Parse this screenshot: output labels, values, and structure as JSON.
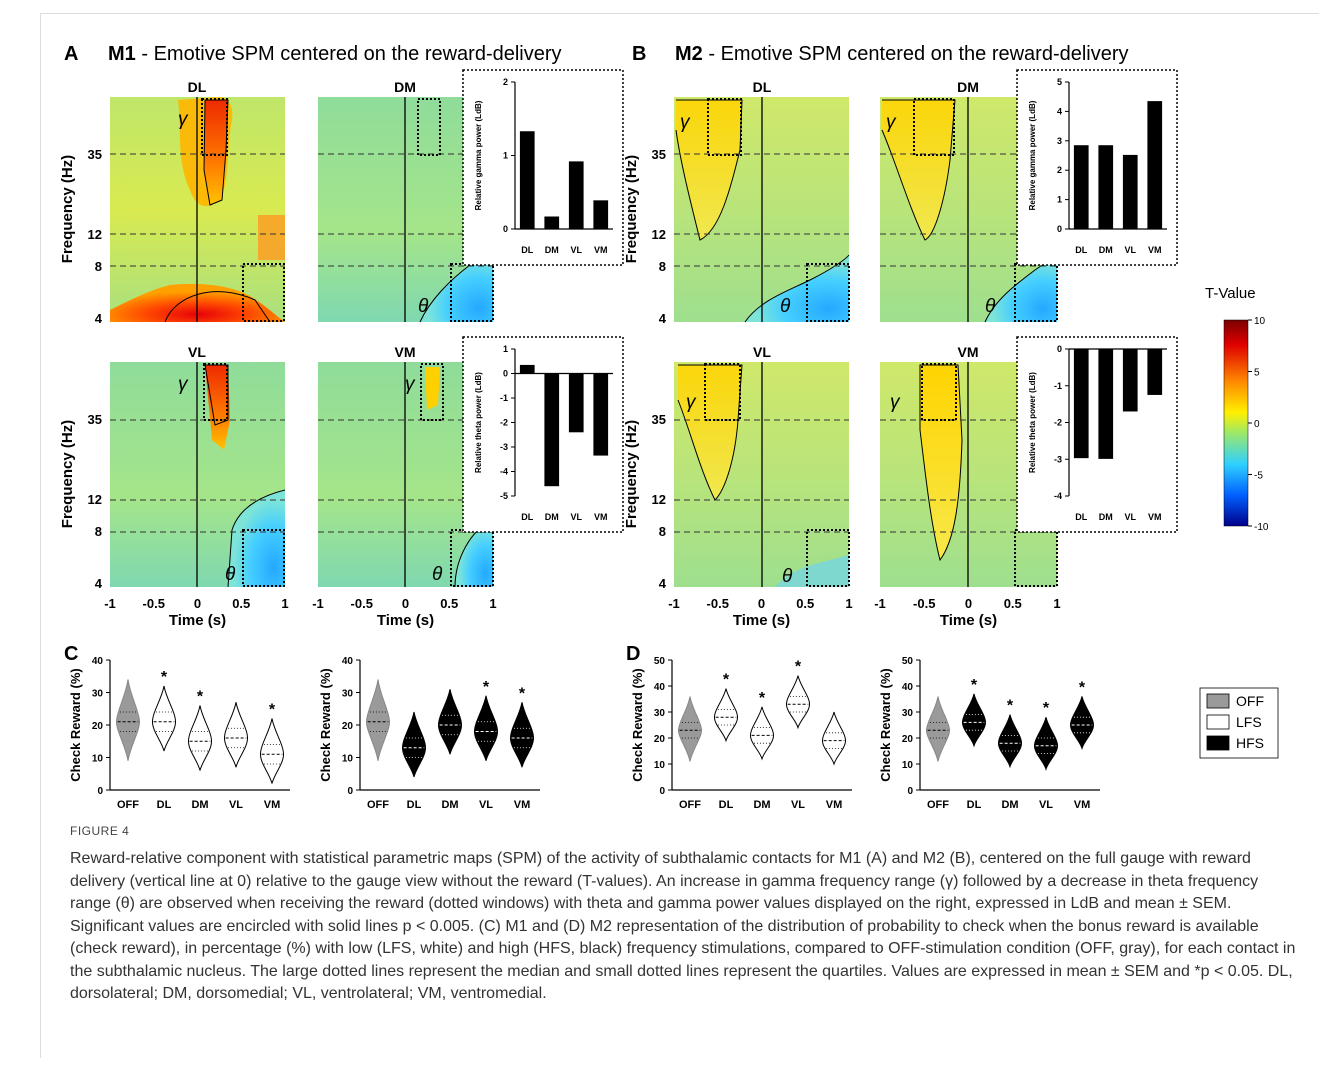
{
  "panels": {
    "A": {
      "letter": "A",
      "title_bold": "M1",
      "title_rest": " - Emotive SPM centered on the reward-delivery"
    },
    "B": {
      "letter": "B",
      "title_bold": "M2",
      "title_rest": " - Emotive SPM centered on the reward-delivery"
    },
    "C": {
      "letter": "C"
    },
    "D": {
      "letter": "D"
    }
  },
  "spm": {
    "contacts": [
      "DL",
      "DM",
      "VL",
      "VM"
    ],
    "freq_axis_label": "Frequency (Hz)",
    "freq_ticks": [
      "35",
      "12",
      "8",
      "4"
    ],
    "time_axis_label": "Time (s)",
    "time_ticks": [
      "-1",
      "-0.5",
      "0",
      "0.5",
      "1"
    ],
    "gamma_symbol": "γ",
    "theta_symbol": "θ"
  },
  "colorbar": {
    "title": "T-Value",
    "ticks": [
      "10",
      "5",
      "0",
      "-5",
      "-10"
    ],
    "colors": [
      "#7a0000",
      "#e00000",
      "#ff7a00",
      "#ffe600",
      "#9be86a",
      "#2fd0ff",
      "#0070ff",
      "#00008b"
    ]
  },
  "chart_data": [
    {
      "type": "bar",
      "panel": "A-gamma",
      "categories": [
        "DL",
        "DM",
        "VL",
        "VM"
      ],
      "values": [
        1.33,
        0.17,
        0.92,
        0.39
      ],
      "ylabel": "Relative gamma power (LdB)",
      "ylim": [
        0,
        2
      ],
      "yticks": [
        "2",
        "1",
        "0"
      ]
    },
    {
      "type": "bar",
      "panel": "A-theta",
      "categories": [
        "DL",
        "DM",
        "VL",
        "VM"
      ],
      "values": [
        0.35,
        -4.6,
        -2.4,
        -3.35
      ],
      "ylabel": "Relative theta power (LdB)",
      "ylim": [
        -5,
        1
      ],
      "yticks": [
        "1",
        "0",
        "-1",
        "-2",
        "-3",
        "-4",
        "-5"
      ]
    },
    {
      "type": "bar",
      "panel": "B-gamma",
      "categories": [
        "DL",
        "DM",
        "VL",
        "VM"
      ],
      "values": [
        2.85,
        2.85,
        2.52,
        4.35
      ],
      "ylabel": "Relative gamma power (LdB)",
      "ylim": [
        0,
        5
      ],
      "yticks": [
        "5",
        "4",
        "3",
        "2",
        "1",
        "0"
      ]
    },
    {
      "type": "bar",
      "panel": "B-theta",
      "categories": [
        "DL",
        "DM",
        "VL",
        "VM"
      ],
      "values": [
        -2.97,
        -2.99,
        -1.7,
        -1.25
      ],
      "ylabel": "Relative theta power (LdB)",
      "ylim": [
        -4,
        0
      ],
      "yticks": [
        "0",
        "-1",
        "-2",
        "-3",
        "-4"
      ]
    },
    {
      "type": "violin",
      "panel": "C-LFS",
      "categories": [
        "OFF",
        "DL",
        "DM",
        "VL",
        "VM"
      ],
      "medians": [
        21,
        21,
        15,
        16,
        11
      ],
      "ylabel": "Check Reward (%)",
      "ylim": [
        0,
        40
      ],
      "yticks": [
        "40",
        "30",
        "20",
        "10",
        "0"
      ],
      "significant": [
        "DL",
        "DM",
        "VM"
      ]
    },
    {
      "type": "violin",
      "panel": "C-HFS",
      "categories": [
        "OFF",
        "DL",
        "DM",
        "VL",
        "VM"
      ],
      "medians": [
        21,
        13,
        20,
        18,
        16
      ],
      "ylabel": "Check Reward (%)",
      "ylim": [
        0,
        40
      ],
      "yticks": [
        "40",
        "30",
        "20",
        "10",
        "0"
      ],
      "significant": [
        "VL",
        "VM"
      ]
    },
    {
      "type": "violin",
      "panel": "D-LFS",
      "categories": [
        "OFF",
        "DL",
        "DM",
        "VL",
        "VM"
      ],
      "medians": [
        23,
        28,
        21,
        33,
        19
      ],
      "ylabel": "Check Reward (%)",
      "ylim": [
        0,
        50
      ],
      "yticks": [
        "50",
        "40",
        "30",
        "20",
        "10",
        "0"
      ],
      "significant": [
        "DL",
        "DM",
        "VL"
      ]
    },
    {
      "type": "violin",
      "panel": "D-HFS",
      "categories": [
        "OFF",
        "DL",
        "DM",
        "VL",
        "VM"
      ],
      "medians": [
        23,
        26,
        18,
        17,
        25
      ],
      "ylabel": "Check Reward (%)",
      "ylim": [
        0,
        50
      ],
      "yticks": [
        "50",
        "40",
        "30",
        "20",
        "10",
        "0"
      ],
      "significant": [
        "DL",
        "DM",
        "VL",
        "VM"
      ]
    }
  ],
  "legend": {
    "items": [
      {
        "label": "OFF",
        "color": "#9a9a9a"
      },
      {
        "label": "LFS",
        "color": "#ffffff"
      },
      {
        "label": "HFS",
        "color": "#000000"
      }
    ]
  },
  "star": "*",
  "caption": {
    "label": "FIGURE 4",
    "text": "Reward-relative component with statistical parametric maps (SPM) of the activity of subthalamic contacts for M1 (A) and M2 (B), centered on the full gauge with reward delivery (vertical line at 0) relative to the gauge view without the reward (T-values). An increase in gamma frequency range (γ) followed by a decrease in theta frequency range (θ) are observed when receiving the reward (dotted windows) with theta and gamma power values displayed on the right, expressed in LdB and mean ± SEM. Significant values are encircled with solid lines p < 0.005. (C) M1 and (D) M2 representation of the distribution of probability to check when the bonus reward is available (check reward), in percentage (%) with low (LFS, white) and high (HFS, black) frequency stimulations, compared to OFF-stimulation condition (OFF, gray), for each contact in the subthalamic nucleus. The large dotted lines represent the median and small dotted lines represent the quartiles. Values are expressed in mean ± SEM and *p < 0.05. DL, dorsolateral; DM, dorsomedial; VL, ventrolateral; VM, ventromedial."
  }
}
